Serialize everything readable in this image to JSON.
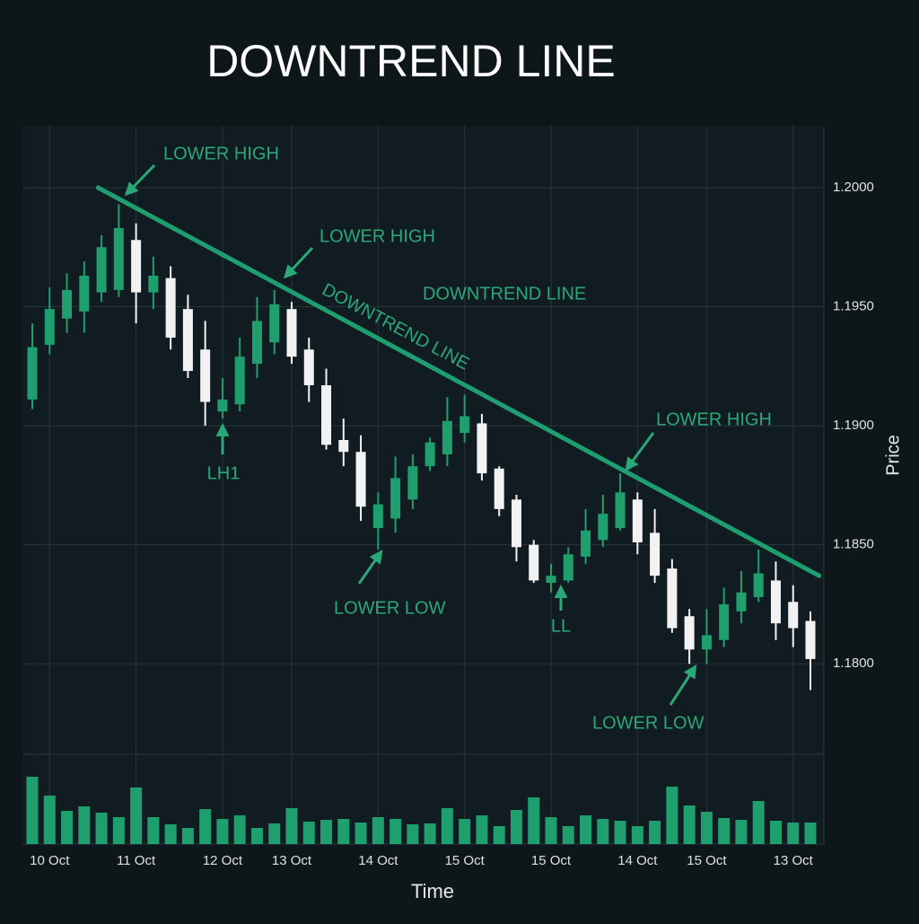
{
  "chart_data": {
    "type": "candlestick",
    "title": "DOWNTREND LINE",
    "x_label": "Time",
    "y_label": "Price",
    "categories": [
      null,
      "10 Oct",
      null,
      null,
      null,
      null,
      "11 Oct",
      null,
      null,
      null,
      null,
      "12 Oct",
      null,
      null,
      null,
      "13 Oct",
      null,
      null,
      null,
      null,
      "14 Oct",
      null,
      null,
      null,
      null,
      "15 Oct",
      null,
      null,
      null,
      null,
      "15 Oct",
      null,
      null,
      null,
      null,
      "14 Oct",
      null,
      null,
      null,
      "15 Oct",
      null,
      null,
      null,
      null,
      "13 Oct",
      null
    ],
    "open": [
      1.1911,
      1.1934,
      1.1945,
      1.1948,
      1.1956,
      1.1957,
      1.1978,
      1.1956,
      1.1962,
      1.1949,
      1.1932,
      1.1906,
      1.1909,
      1.1926,
      1.1935,
      1.1949,
      1.1932,
      1.1917,
      1.1894,
      1.1889,
      1.1857,
      1.1861,
      1.1869,
      1.1883,
      1.1888,
      1.1897,
      1.1901,
      1.1882,
      1.1869,
      1.185,
      1.1834,
      1.1835,
      1.1845,
      1.1852,
      1.1857,
      1.1869,
      1.1855,
      1.184,
      1.182,
      1.1806,
      1.181,
      1.1822,
      1.1828,
      1.1835,
      1.1826,
      1.1818
    ],
    "high": [
      1.1943,
      1.1958,
      1.1964,
      1.1969,
      1.198,
      1.1993,
      1.1985,
      1.1971,
      1.1967,
      1.1955,
      1.1944,
      1.192,
      1.1937,
      1.1954,
      1.1957,
      1.1952,
      1.1937,
      1.1924,
      1.1903,
      1.1896,
      1.1872,
      1.1887,
      1.1888,
      1.1895,
      1.1912,
      1.1913,
      1.1905,
      1.1883,
      1.1871,
      1.1852,
      1.1842,
      1.1849,
      1.1865,
      1.1871,
      1.188,
      1.1872,
      1.1865,
      1.1844,
      1.1823,
      1.1823,
      1.1832,
      1.1839,
      1.1848,
      1.1843,
      1.1833,
      1.1822
    ],
    "low": [
      1.1907,
      1.193,
      1.1939,
      1.1939,
      1.1952,
      1.1954,
      1.1943,
      1.1949,
      1.1932,
      1.192,
      1.19,
      1.1903,
      1.1906,
      1.192,
      1.193,
      1.1926,
      1.191,
      1.189,
      1.1883,
      1.186,
      1.1848,
      1.1855,
      1.1865,
      1.1881,
      1.1883,
      1.1893,
      1.1877,
      1.1862,
      1.1843,
      1.1834,
      1.183,
      1.1834,
      1.1842,
      1.1849,
      1.1856,
      1.1846,
      1.1834,
      1.1813,
      1.18,
      1.18,
      1.1807,
      1.1817,
      1.1826,
      1.181,
      1.1807,
      1.1789
    ],
    "close": [
      1.1933,
      1.1949,
      1.1957,
      1.1963,
      1.1975,
      1.1983,
      1.1956,
      1.1963,
      1.1937,
      1.1923,
      1.191,
      1.1911,
      1.1929,
      1.1944,
      1.1951,
      1.1929,
      1.1917,
      1.1892,
      1.1889,
      1.1866,
      1.1867,
      1.1878,
      1.1883,
      1.1893,
      1.1902,
      1.1904,
      1.188,
      1.1865,
      1.1849,
      1.1835,
      1.1837,
      1.1846,
      1.1856,
      1.1863,
      1.1872,
      1.1851,
      1.1837,
      1.1815,
      1.1806,
      1.1812,
      1.1825,
      1.183,
      1.1838,
      1.1817,
      1.1815,
      1.1802
    ],
    "volume": [
      75,
      54,
      37,
      42,
      35,
      30,
      63,
      30,
      22,
      18,
      39,
      28,
      32,
      18,
      23,
      40,
      25,
      27,
      28,
      24,
      30,
      28,
      22,
      23,
      40,
      28,
      32,
      20,
      38,
      52,
      30,
      20,
      32,
      28,
      26,
      20,
      26,
      64,
      43,
      36,
      29,
      27,
      48,
      26,
      24,
      24
    ],
    "volume_lim": [
      0,
      100
    ],
    "up_color": "#1f9e6e",
    "down_color": "#f2f2f2",
    "ylim": [
      1.1762,
      1.2026
    ],
    "yticks": [
      {
        "value": 1.2,
        "label": "1.2000"
      },
      {
        "value": 1.195,
        "label": "1.1950"
      },
      {
        "value": 1.19,
        "label": "1.1900"
      },
      {
        "value": 1.185,
        "label": "1.1850"
      },
      {
        "value": 1.18,
        "label": "1.1800"
      }
    ],
    "grid": true,
    "trend_line": {
      "x": [
        3.8,
        45.5
      ],
      "y": [
        1.2,
        1.1837
      ],
      "color": "#1f9e70"
    },
    "annotations": [
      {
        "text": "LOWER HIGH"
      },
      {
        "text": "LOWER HIGH"
      },
      {
        "text": "DOWNTREND LINE"
      },
      {
        "text": "DOWNTREND LINE"
      },
      {
        "text": "LH1"
      },
      {
        "text": "LOWER LOW"
      },
      {
        "text": "LL"
      },
      {
        "text": "LOWER HIGH"
      },
      {
        "text": "LOWER LOW"
      }
    ]
  }
}
